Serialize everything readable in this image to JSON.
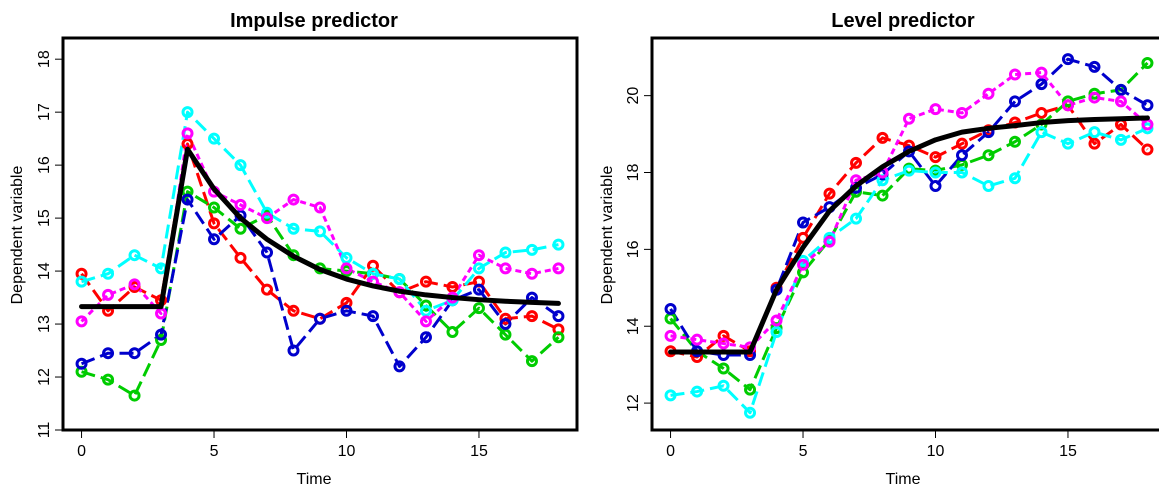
{
  "chart_data": [
    {
      "type": "line",
      "title": "Impulse predictor",
      "xlabel": "Time",
      "ylabel": "Dependent variable",
      "xlim": [
        -0.7,
        18.7
      ],
      "ylim": [
        11,
        18.4
      ],
      "xticks": [
        "0",
        "5",
        "10",
        "15"
      ],
      "yticks": [
        "11",
        "12",
        "13",
        "14",
        "15",
        "16",
        "17",
        "18"
      ],
      "grid": false,
      "legend": "none",
      "x": [
        0,
        1,
        2,
        3,
        4,
        5,
        6,
        7,
        8,
        9,
        10,
        11,
        12,
        13,
        14,
        15,
        16,
        17,
        18
      ],
      "mean_line": {
        "color": "#000000",
        "values": [
          13.33,
          13.33,
          13.33,
          13.33,
          16.3,
          15.55,
          15.0,
          14.6,
          14.28,
          14.03,
          13.85,
          13.72,
          13.62,
          13.55,
          13.5,
          13.46,
          13.43,
          13.41,
          13.39
        ]
      },
      "series": [
        {
          "color": "#ff0000",
          "dash": "long",
          "values": [
            13.95,
            13.25,
            13.7,
            13.45,
            16.4,
            14.9,
            14.25,
            13.65,
            13.25,
            13.1,
            13.4,
            14.1,
            13.6,
            13.8,
            13.7,
            13.8,
            13.1,
            13.15,
            12.9
          ]
        },
        {
          "color": "#00cc00",
          "dash": "long",
          "values": [
            12.1,
            11.95,
            11.65,
            12.7,
            15.5,
            15.2,
            14.8,
            15.05,
            14.3,
            14.05,
            14.0,
            13.95,
            13.85,
            13.35,
            12.85,
            13.3,
            12.8,
            12.3,
            12.75
          ]
        },
        {
          "color": "#0000cc",
          "dash": "long",
          "values": [
            12.25,
            12.45,
            12.45,
            12.8,
            15.35,
            14.6,
            15.05,
            14.35,
            12.5,
            13.1,
            13.25,
            13.15,
            12.2,
            12.75,
            13.45,
            13.65,
            13.0,
            13.5,
            13.15
          ]
        },
        {
          "color": "#00ffff",
          "dash": "long",
          "values": [
            13.8,
            13.95,
            14.3,
            14.05,
            17.0,
            16.5,
            16.0,
            15.1,
            14.8,
            14.75,
            14.25,
            13.95,
            13.85,
            13.25,
            13.45,
            14.05,
            14.35,
            14.4,
            14.5
          ]
        },
        {
          "color": "#ff00ff",
          "dash": "short",
          "values": [
            13.05,
            13.55,
            13.75,
            13.2,
            16.6,
            15.5,
            15.25,
            15.0,
            15.35,
            15.2,
            14.05,
            13.8,
            13.6,
            13.05,
            13.5,
            14.3,
            14.05,
            13.95,
            14.05
          ]
        }
      ]
    },
    {
      "type": "line",
      "title": "Level predictor",
      "xlabel": "Time",
      "ylabel": "Dependent variable",
      "xlim": [
        -0.7,
        18.7
      ],
      "ylim": [
        11.3,
        21.5
      ],
      "xticks": [
        "0",
        "5",
        "10",
        "15"
      ],
      "yticks": [
        "12",
        "14",
        "16",
        "18",
        "20"
      ],
      "grid": false,
      "legend": "none",
      "x": [
        0,
        1,
        2,
        3,
        4,
        5,
        6,
        7,
        8,
        9,
        10,
        11,
        12,
        13,
        14,
        15,
        16,
        17,
        18
      ],
      "mean_line": {
        "color": "#000000",
        "values": [
          13.33,
          13.33,
          13.33,
          13.33,
          14.95,
          16.05,
          17.0,
          17.65,
          18.15,
          18.55,
          18.85,
          19.05,
          19.15,
          19.22,
          19.3,
          19.35,
          19.38,
          19.4,
          19.42
        ]
      },
      "series": [
        {
          "color": "#ff0000",
          "dash": "long",
          "values": [
            13.35,
            13.2,
            13.75,
            13.35,
            15.0,
            16.3,
            17.45,
            18.25,
            18.9,
            18.7,
            18.4,
            18.75,
            19.1,
            19.3,
            19.55,
            19.75,
            18.75,
            19.25,
            18.6
          ]
        },
        {
          "color": "#00cc00",
          "dash": "long",
          "values": [
            14.2,
            13.35,
            12.9,
            12.35,
            13.95,
            15.4,
            16.25,
            17.5,
            17.4,
            18.1,
            18.05,
            18.2,
            18.45,
            18.8,
            19.25,
            19.85,
            20.05,
            20.15,
            20.85
          ]
        },
        {
          "color": "#0000cc",
          "dash": "long",
          "values": [
            14.45,
            13.35,
            13.25,
            13.25,
            14.95,
            16.7,
            17.1,
            17.6,
            17.95,
            18.55,
            17.65,
            18.45,
            19.05,
            19.85,
            20.3,
            20.95,
            20.75,
            20.15,
            19.75
          ]
        },
        {
          "color": "#00ffff",
          "dash": "long",
          "values": [
            12.2,
            12.3,
            12.45,
            11.75,
            13.85,
            15.7,
            16.3,
            16.8,
            17.8,
            18.05,
            18.0,
            18.0,
            17.65,
            17.85,
            19.05,
            18.75,
            19.05,
            18.85,
            19.15
          ]
        },
        {
          "color": "#ff00ff",
          "dash": "short",
          "values": [
            13.75,
            13.65,
            13.55,
            13.45,
            14.15,
            15.6,
            16.2,
            17.8,
            18.0,
            19.4,
            19.65,
            19.55,
            20.05,
            20.55,
            20.6,
            19.75,
            19.95,
            19.85,
            19.25
          ]
        }
      ]
    }
  ]
}
